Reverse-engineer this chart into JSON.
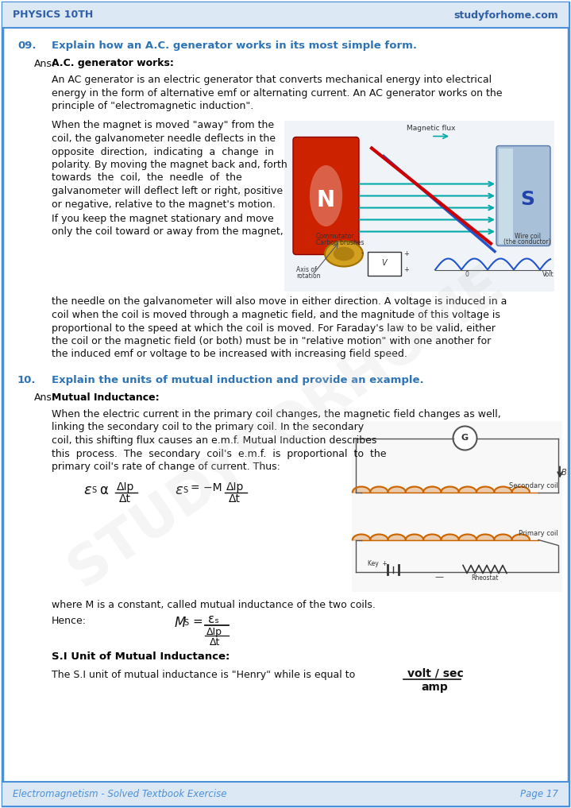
{
  "page_bg": "#ffffff",
  "border_color": "#4a90d9",
  "header_text_left": "PHYSICS 10TH",
  "header_text_right": "studyforhome.com",
  "header_color": "#2e5ea8",
  "footer_text_left": "Electromagnetism - Solved Textbook Exercise",
  "footer_text_right": "Page 17",
  "footer_color": "#4a90d9",
  "question_color": "#2e74b5",
  "text_color": "#111111",
  "bold_color": "#000000",
  "q9_number": "09.",
  "q9_question": "Explain how an A.C. generator works in its most simple form.",
  "q9_ans_bold": "A.C. generator works:",
  "q9_para1_lines": [
    "An AC generator is an electric generator that converts mechanical energy into electrical",
    "energy in the form of alternative emf or alternating current. An AC generator works on the",
    "principle of \"electromagnetic induction\"."
  ],
  "q9_para2_lines": [
    "When the magnet is moved \"away\" from the",
    "coil, the galvanometer needle deflects in the",
    "opposite  direction,  indicating  a  change  in",
    "polarity. By moving the magnet back and, forth",
    "towards  the  coil,  the  needle  of  the",
    "galvanometer will deflect left or right, positive",
    "or negative, relative to the magnet's motion."
  ],
  "q9_para3_lines": [
    "If you keep the magnet stationary and move",
    "only the coil toward or away from the magnet,"
  ],
  "q9_para4_lines": [
    "the needle on the galvanometer will also move in either direction. A voltage is induced in a",
    "coil when the coil is moved through a magnetic field, and the magnitude of this voltage is",
    "proportional to the speed at which the coil is moved. For Faraday's law to be valid, either",
    "the coil or the magnetic field (or both) must be in \"relative motion\" with one another for",
    "the induced emf or voltage to be increased with increasing field speed."
  ],
  "q10_number": "10.",
  "q10_question": "Explain the units of mutual induction and provide an example.",
  "q10_ans_bold": "Mutual Inductance:",
  "q10_para1_full": "When the electric current in the primary coil changes, the magnetic field changes as well,",
  "q10_para1_left_lines": [
    "linking the secondary coil to the primary coil. In the secondary",
    "coil, this shifting flux causes an e.m.f. Mutual Induction describes",
    "this  process.  The  secondary  coil's  e.m.f.  is  proportional  to  the",
    "primary coil's rate of change of current. Thus:"
  ],
  "q10_para2": "where M is a constant, called mutual inductance of the two coils.",
  "q10_hence": "Hence:",
  "q10_si_bold": "S.I Unit of Mutual Inductance:",
  "q10_si_text": "The S.I unit of mutual inductance is \"Henry\" while is equal to",
  "q10_si_num": "volt / sec",
  "q10_si_den": "amp"
}
